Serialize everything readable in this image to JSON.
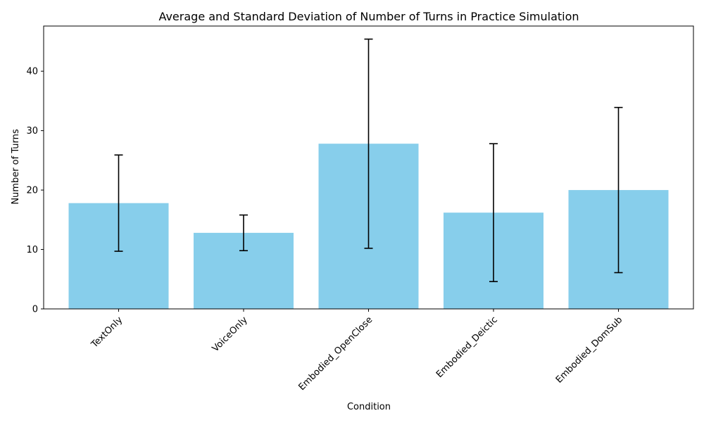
{
  "chart_data": {
    "type": "bar",
    "title": "Average and Standard Deviation of Number of Turns in Practice Simulation",
    "xlabel": "Condition",
    "ylabel": "Number of Turns",
    "categories": [
      "TextOnly",
      "VoiceOnly",
      "Embodied_OpenClose",
      "Embodied_Deictic",
      "Embodied_DomSub"
    ],
    "values": [
      17.8,
      12.8,
      27.8,
      16.2,
      20.0
    ],
    "std": [
      8.1,
      3.0,
      17.6,
      11.6,
      13.9
    ],
    "ylim": [
      0,
      47.6
    ],
    "yticks": [
      0,
      10,
      20,
      30,
      40
    ],
    "bar_color": "#87CEEB",
    "errorbar_color": "#000000",
    "grid": false,
    "legend": false,
    "xtick_rotation": 45
  }
}
